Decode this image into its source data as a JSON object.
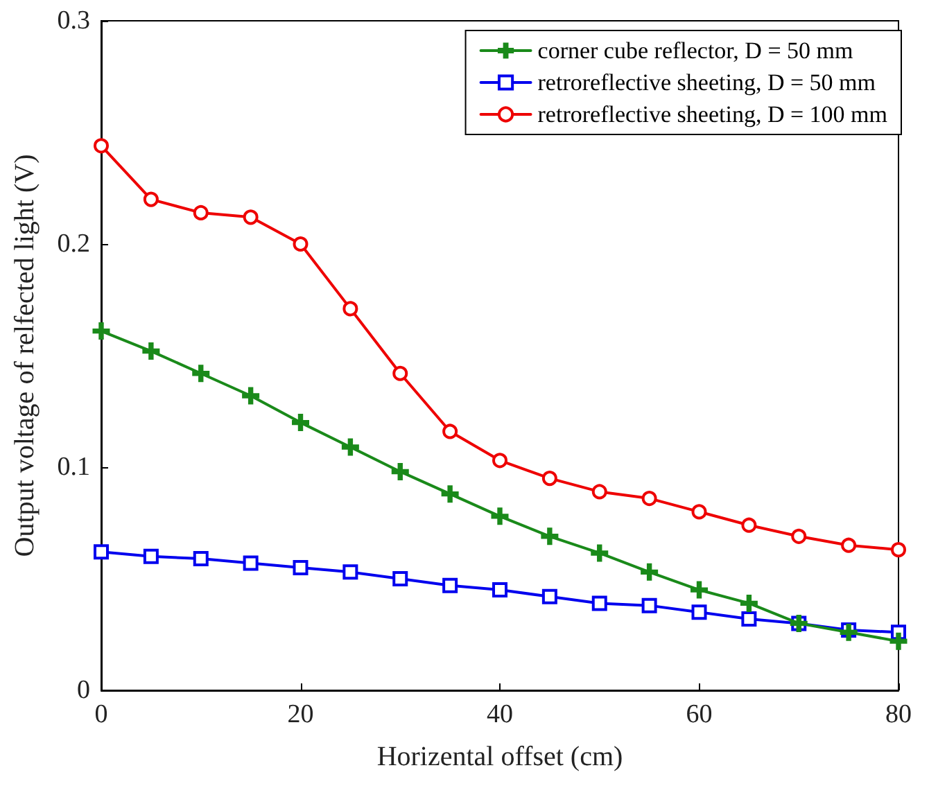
{
  "chart_data": {
    "type": "line",
    "xlabel": "Horizental offset (cm)",
    "ylabel": "Output voltage of relfected light (V)",
    "x": [
      0,
      5,
      10,
      15,
      20,
      25,
      30,
      35,
      40,
      45,
      50,
      55,
      60,
      65,
      70,
      75,
      80
    ],
    "series": [
      {
        "name": "corner cube reflector, D = 50 mm",
        "color": "#1a8a1a",
        "marker": "cross",
        "values": [
          0.161,
          0.152,
          0.142,
          0.132,
          0.12,
          0.109,
          0.098,
          0.088,
          0.078,
          0.069,
          0.0615,
          0.053,
          0.045,
          0.039,
          0.03,
          0.026,
          0.022
        ]
      },
      {
        "name": "retroreflective sheeting, D = 50 mm",
        "color": "#0000ee",
        "marker": "square",
        "values": [
          0.062,
          0.06,
          0.059,
          0.057,
          0.055,
          0.053,
          0.05,
          0.047,
          0.045,
          0.042,
          0.039,
          0.038,
          0.035,
          0.032,
          0.03,
          0.027,
          0.026
        ]
      },
      {
        "name": "retroreflective sheeting, D = 100 mm",
        "color": "#ee0000",
        "marker": "circle",
        "values": [
          0.244,
          0.22,
          0.214,
          0.212,
          0.2,
          0.171,
          0.142,
          0.116,
          0.103,
          0.095,
          0.089,
          0.086,
          0.08,
          0.074,
          0.069,
          0.065,
          0.063
        ]
      }
    ],
    "xlim": [
      0,
      80
    ],
    "xticks": [
      0,
      20,
      40,
      60,
      80
    ],
    "ylim": [
      0,
      0.3
    ],
    "yticks": [
      0,
      0.1,
      0.2,
      0.3
    ],
    "grid": false,
    "legend": "top right",
    "line_style": "solid"
  }
}
